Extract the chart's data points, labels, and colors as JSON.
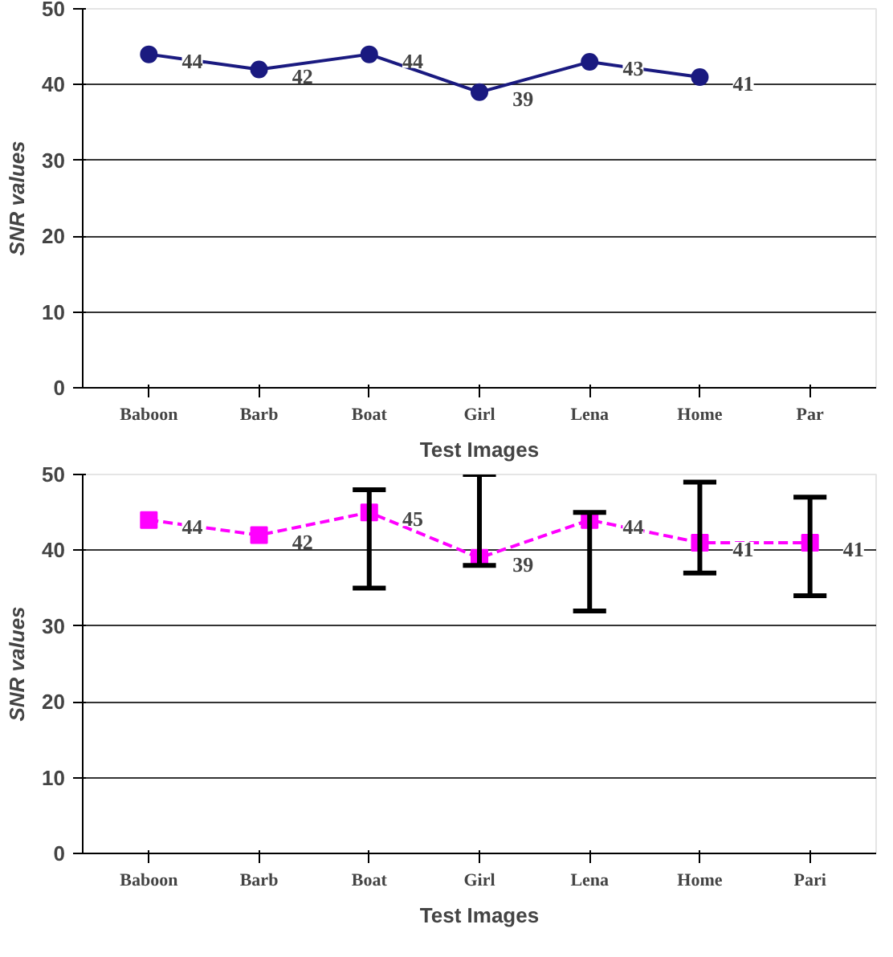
{
  "chart_data": [
    {
      "type": "line",
      "xlabel": "Test Images",
      "ylabel": "SNR values",
      "categories": [
        "Baboon",
        "Barb",
        "Boat",
        "Girl",
        "Lena",
        "Home",
        "Par"
      ],
      "series": [
        {
          "color": "#1a1a80",
          "values": [
            44,
            42,
            44,
            39,
            43,
            41,
            null
          ]
        }
      ],
      "ylim": [
        0,
        50
      ],
      "yticks": [
        0,
        10,
        20,
        30,
        40,
        50
      ],
      "grid": "y",
      "marker": "circle",
      "line_style": "solid",
      "data_labels": true
    },
    {
      "type": "line",
      "xlabel": "Test Images",
      "ylabel": "SNR values",
      "categories": [
        "Baboon",
        "Barb",
        "Boat",
        "Girl",
        "Lena",
        "Home",
        "Pari"
      ],
      "series": [
        {
          "color": "#ff00ff",
          "values": [
            44,
            42,
            45,
            39,
            44,
            41,
            41
          ],
          "errors": [
            null,
            null,
            [
              35,
              48
            ],
            [
              38,
              50
            ],
            [
              32,
              45
            ],
            [
              37,
              49
            ],
            [
              34,
              47
            ]
          ]
        }
      ],
      "ylim": [
        0,
        50
      ],
      "yticks": [
        0,
        10,
        20,
        30,
        40,
        50
      ],
      "grid": "y",
      "marker": "square",
      "line_style": "dashed",
      "data_labels": true
    }
  ]
}
